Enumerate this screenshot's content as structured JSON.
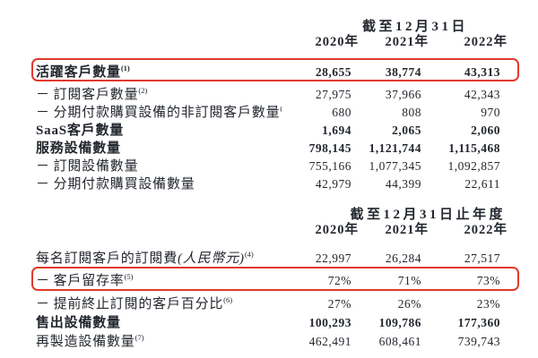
{
  "colors": {
    "highlight": "#e2392c",
    "text": "#23272e"
  },
  "glyphs": {
    "dash": "－"
  },
  "table1": {
    "period_header": "截至12月31日",
    "years": [
      "2020年",
      "2021年",
      "2022年"
    ],
    "rows": [
      {
        "label": "活躍客戶數量",
        "sup": "(1)",
        "dash": false,
        "bold": true,
        "highlight": true,
        "values": [
          "28,655",
          "38,774",
          "43,313"
        ]
      },
      {
        "label": "訂閱客戶數量",
        "sup": "(2)",
        "dash": true,
        "bold": false,
        "highlight": false,
        "values": [
          "27,975",
          "37,966",
          "42,343"
        ]
      },
      {
        "label": "分期付款購買設備的非訂閱客戶數量",
        "sup": "(3)",
        "dash": true,
        "bold": false,
        "highlight": false,
        "values": [
          "680",
          "808",
          "970"
        ]
      },
      {
        "label": "SaaS客戶數量",
        "sup": "",
        "dash": false,
        "bold": true,
        "highlight": false,
        "values": [
          "1,694",
          "2,065",
          "2,060"
        ]
      },
      {
        "label": "服務設備數量",
        "sup": "",
        "dash": false,
        "bold": true,
        "highlight": false,
        "values": [
          "798,145",
          "1,121,744",
          "1,115,468"
        ]
      },
      {
        "label": "訂閱設備數量",
        "sup": "",
        "dash": true,
        "bold": false,
        "highlight": false,
        "values": [
          "755,166",
          "1,077,345",
          "1,092,857"
        ]
      },
      {
        "label": "分期付款購買設備數量",
        "sup": "",
        "dash": true,
        "bold": false,
        "highlight": false,
        "values": [
          "42,979",
          "44,399",
          "22,611"
        ]
      }
    ]
  },
  "table2": {
    "period_header": "截至12月31日止年度",
    "years": [
      "2020年",
      "2021年",
      "2022年"
    ],
    "rows": [
      {
        "label": "每名訂閱客戶的訂閱費",
        "label_italic": "(人民幣元)",
        "sup": "(4)",
        "dash": false,
        "bold": false,
        "highlight": false,
        "values": [
          "22,997",
          "26,284",
          "27,517"
        ]
      },
      {
        "label": "客戶留存率",
        "sup": "(5)",
        "dash": true,
        "bold": false,
        "highlight": true,
        "values": [
          "72%",
          "71%",
          "73%"
        ]
      },
      {
        "label": "提前終止訂閱的客戶百分比",
        "sup": "(6)",
        "dash": true,
        "bold": false,
        "highlight": false,
        "values": [
          "27%",
          "26%",
          "23%"
        ]
      },
      {
        "label": "售出設備數量",
        "sup": "",
        "dash": false,
        "bold": true,
        "highlight": false,
        "values": [
          "100,293",
          "109,786",
          "177,360"
        ]
      },
      {
        "label": "再製造設備數量",
        "sup": "(7)",
        "dash": false,
        "bold": false,
        "highlight": false,
        "values": [
          "462,491",
          "608,461",
          "739,743"
        ]
      }
    ]
  }
}
